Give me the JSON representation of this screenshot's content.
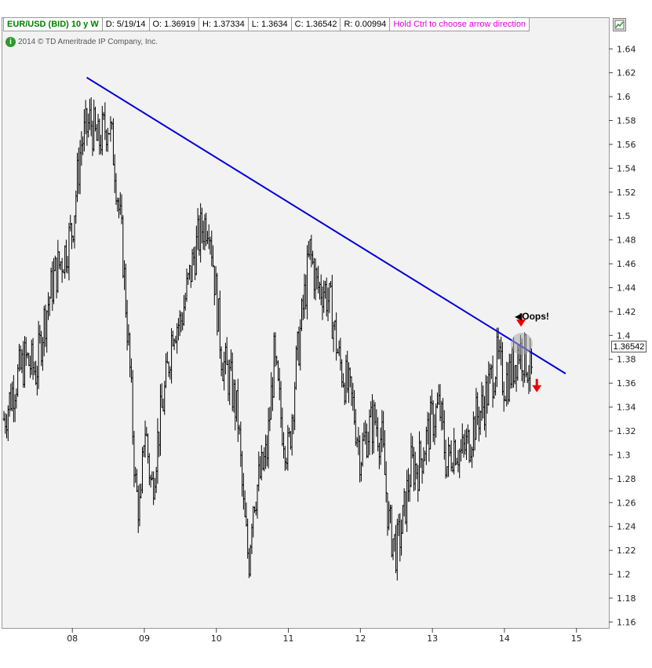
{
  "header": {
    "symbol": "EUR/USD (BID) 10 y W",
    "date": "D: 5/19/14",
    "open": "O: 1.36919",
    "high": "H: 1.37334",
    "low": "L: 1.3634",
    "close": "C: 1.36542",
    "range": "R: 0.00994",
    "hint": "Hold Ctrl to choose arrow direction"
  },
  "copyright": "2014 © TD Ameritrade IP Company, Inc.",
  "icons": {
    "copyright": "info-circle-icon",
    "settings": "chart-settings-icon"
  },
  "colors": {
    "bars": "#000000",
    "trendline": "#0000dd",
    "arrows": "#ee0000",
    "symbol": "#008000",
    "hint": "#e000e0",
    "background": "#f2f2f2"
  },
  "annotations": {
    "callout": "Oops!",
    "last_price": "1.36542"
  },
  "chart_data": {
    "type": "ohlc",
    "title": "EUR/USD (BID) 10 y W",
    "interval": "weekly",
    "xlabel": "",
    "ylabel": "",
    "x_ticks": [
      "08",
      "09",
      "10",
      "11",
      "12",
      "13",
      "14",
      "15"
    ],
    "y_ticks": [
      1.16,
      1.18,
      1.2,
      1.22,
      1.24,
      1.26,
      1.28,
      1.3,
      1.32,
      1.34,
      1.36,
      1.38,
      1.4,
      1.42,
      1.44,
      1.46,
      1.48,
      1.5,
      1.52,
      1.54,
      1.56,
      1.58,
      1.6,
      1.62,
      1.64
    ],
    "xlim": [
      2007.05,
      2015.45
    ],
    "ylim": [
      1.155,
      1.652
    ],
    "grid": false,
    "legend": "none",
    "price_path": [
      [
        2007.05,
        1.33
      ],
      [
        2007.2,
        1.36
      ],
      [
        2007.35,
        1.38
      ],
      [
        2007.5,
        1.37
      ],
      [
        2007.6,
        1.41
      ],
      [
        2007.75,
        1.45
      ],
      [
        2007.9,
        1.47
      ],
      [
        2008.0,
        1.49
      ],
      [
        2008.12,
        1.56
      ],
      [
        2008.25,
        1.58
      ],
      [
        2008.35,
        1.56
      ],
      [
        2008.5,
        1.58
      ],
      [
        2008.58,
        1.55
      ],
      [
        2008.7,
        1.47
      ],
      [
        2008.8,
        1.37
      ],
      [
        2008.88,
        1.27
      ],
      [
        2008.95,
        1.25
      ],
      [
        2009.0,
        1.33
      ],
      [
        2009.1,
        1.27
      ],
      [
        2009.2,
        1.32
      ],
      [
        2009.3,
        1.36
      ],
      [
        2009.4,
        1.41
      ],
      [
        2009.5,
        1.41
      ],
      [
        2009.6,
        1.44
      ],
      [
        2009.7,
        1.47
      ],
      [
        2009.8,
        1.49
      ],
      [
        2009.9,
        1.5
      ],
      [
        2010.0,
        1.43
      ],
      [
        2010.08,
        1.38
      ],
      [
        2010.2,
        1.36
      ],
      [
        2010.3,
        1.33
      ],
      [
        2010.38,
        1.25
      ],
      [
        2010.45,
        1.21
      ],
      [
        2010.5,
        1.26
      ],
      [
        2010.6,
        1.28
      ],
      [
        2010.7,
        1.3
      ],
      [
        2010.8,
        1.38
      ],
      [
        2010.9,
        1.33
      ],
      [
        2011.0,
        1.3
      ],
      [
        2011.1,
        1.37
      ],
      [
        2011.2,
        1.42
      ],
      [
        2011.3,
        1.47
      ],
      [
        2011.4,
        1.44
      ],
      [
        2011.5,
        1.44
      ],
      [
        2011.6,
        1.42
      ],
      [
        2011.7,
        1.38
      ],
      [
        2011.8,
        1.36
      ],
      [
        2011.9,
        1.34
      ],
      [
        2012.0,
        1.3
      ],
      [
        2012.1,
        1.32
      ],
      [
        2012.2,
        1.33
      ],
      [
        2012.3,
        1.31
      ],
      [
        2012.4,
        1.24
      ],
      [
        2012.5,
        1.22
      ],
      [
        2012.58,
        1.24
      ],
      [
        2012.7,
        1.29
      ],
      [
        2012.8,
        1.29
      ],
      [
        2012.9,
        1.31
      ],
      [
        2013.0,
        1.33
      ],
      [
        2013.1,
        1.34
      ],
      [
        2013.2,
        1.29
      ],
      [
        2013.3,
        1.31
      ],
      [
        2013.4,
        1.3
      ],
      [
        2013.5,
        1.31
      ],
      [
        2013.6,
        1.33
      ],
      [
        2013.7,
        1.34
      ],
      [
        2013.8,
        1.36
      ],
      [
        2013.9,
        1.38
      ],
      [
        2014.0,
        1.36
      ],
      [
        2014.1,
        1.37
      ],
      [
        2014.2,
        1.39
      ],
      [
        2014.3,
        1.38
      ],
      [
        2014.38,
        1.365
      ]
    ],
    "series": [
      {
        "type": "line",
        "x": [
          2008.2,
          2014.85
        ],
        "y": [
          1.616,
          1.368
        ]
      }
    ],
    "annotations": [
      {
        "type": "arrow-down",
        "x": 2014.23,
        "y": 1.412
      },
      {
        "type": "arrow-down",
        "x": 2014.45,
        "y": 1.357
      },
      {
        "type": "highlight",
        "x": 2014.24,
        "y": 1.393
      },
      {
        "type": "label",
        "x": 2014.55,
        "y": 1.39,
        "text": "Oops!"
      }
    ]
  }
}
